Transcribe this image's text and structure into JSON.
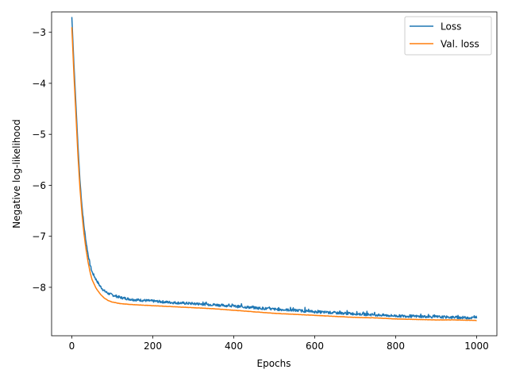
{
  "chart_data": {
    "type": "line",
    "title": "",
    "xlabel": "Epochs",
    "ylabel": "Negative log-likelihood",
    "xlim": [
      -50,
      1050
    ],
    "ylim": [
      -8.95,
      -2.6
    ],
    "xticks": [
      0,
      200,
      400,
      600,
      800,
      1000
    ],
    "yticks": [
      -3,
      -4,
      -5,
      -6,
      -7,
      -8
    ],
    "xtick_labels": [
      "0",
      "200",
      "400",
      "600",
      "800",
      "1000"
    ],
    "ytick_labels": [
      "−3",
      "−4",
      "−5",
      "−6",
      "−7",
      "−8"
    ],
    "grid": false,
    "legend_position": "top-right",
    "series": [
      {
        "name": "Loss",
        "color": "#1f77b4",
        "noise": "high",
        "x": [
          0,
          5,
          10,
          15,
          20,
          25,
          30,
          35,
          40,
          45,
          50,
          60,
          70,
          80,
          90,
          100,
          120,
          150,
          200,
          250,
          300,
          350,
          400,
          450,
          500,
          550,
          600,
          650,
          700,
          750,
          800,
          850,
          900,
          950,
          1000
        ],
        "y": [
          -2.7,
          -3.6,
          -4.4,
          -5.2,
          -5.9,
          -6.4,
          -6.8,
          -7.1,
          -7.35,
          -7.55,
          -7.7,
          -7.85,
          -7.98,
          -8.07,
          -8.12,
          -8.15,
          -8.2,
          -8.24,
          -8.27,
          -8.3,
          -8.32,
          -8.34,
          -8.37,
          -8.4,
          -8.43,
          -8.45,
          -8.48,
          -8.5,
          -8.52,
          -8.54,
          -8.56,
          -8.57,
          -8.58,
          -8.59,
          -8.6
        ]
      },
      {
        "name": "Val. loss",
        "color": "#ff7f0e",
        "noise": "low",
        "x": [
          0,
          5,
          10,
          15,
          20,
          25,
          30,
          35,
          40,
          45,
          50,
          60,
          70,
          80,
          90,
          100,
          120,
          150,
          200,
          250,
          300,
          350,
          400,
          450,
          500,
          550,
          600,
          650,
          700,
          750,
          800,
          850,
          900,
          950,
          1000
        ],
        "y": [
          -2.9,
          -3.8,
          -4.6,
          -5.4,
          -6.05,
          -6.55,
          -6.95,
          -7.25,
          -7.5,
          -7.7,
          -7.85,
          -8.02,
          -8.13,
          -8.21,
          -8.26,
          -8.29,
          -8.32,
          -8.34,
          -8.36,
          -8.38,
          -8.4,
          -8.42,
          -8.45,
          -8.48,
          -8.51,
          -8.53,
          -8.55,
          -8.57,
          -8.59,
          -8.6,
          -8.62,
          -8.63,
          -8.64,
          -8.64,
          -8.65
        ]
      }
    ]
  }
}
